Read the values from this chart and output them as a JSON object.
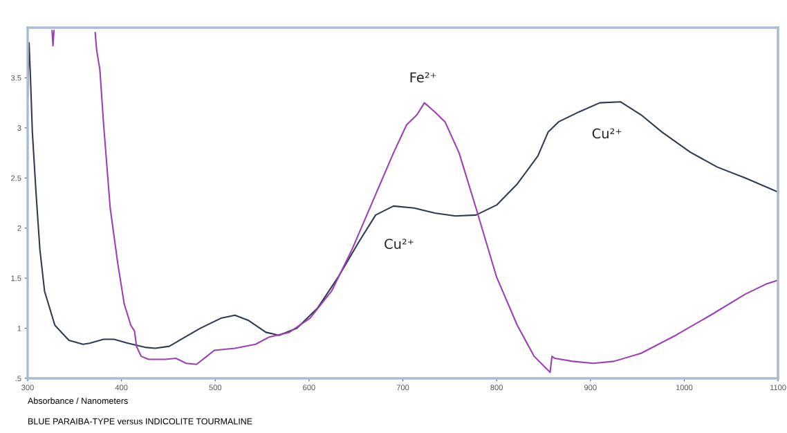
{
  "chart_data": {
    "type": "line",
    "title": "BLUE PARAIBA-TYPE versus INDICOLITE TOURMALINE",
    "xlabel": "Absorbance / Nanometers",
    "xlim": [
      300,
      1100
    ],
    "ylim": [
      0.5,
      4.0
    ],
    "xticks": [
      300,
      400,
      500,
      600,
      700,
      800,
      900,
      1000,
      1100
    ],
    "yticks": [
      {
        "value": 0.5,
        "label": ".5"
      },
      1,
      1.5,
      2,
      2.5,
      3,
      3.5
    ],
    "grid": false,
    "legend": false,
    "marker": "none",
    "line_style": "solid",
    "series": [
      {
        "color": "#2e3a4f",
        "x": [
          300,
          301.5,
          303,
          305,
          309,
          313,
          318,
          329,
          344,
          359,
          366,
          381,
          392,
          407,
          425,
          436,
          451,
          462,
          484,
          506,
          521,
          535,
          554,
          568,
          587,
          609,
          631,
          653,
          671,
          690,
          712,
          734,
          756,
          778,
          800,
          822,
          844,
          855,
          866,
          888,
          910,
          932,
          954,
          976,
          1006,
          1035,
          1065,
          1100
        ],
        "values": [
          3.3,
          3.85,
          3.5,
          2.96,
          2.34,
          1.79,
          1.37,
          1.03,
          0.88,
          0.84,
          0.85,
          0.89,
          0.89,
          0.85,
          0.81,
          0.8,
          0.82,
          0.88,
          1.0,
          1.1,
          1.13,
          1.08,
          0.96,
          0.93,
          1.0,
          1.2,
          1.51,
          1.86,
          2.13,
          2.22,
          2.2,
          2.15,
          2.12,
          2.13,
          2.23,
          2.44,
          2.72,
          2.96,
          3.06,
          3.16,
          3.25,
          3.26,
          3.13,
          2.96,
          2.76,
          2.61,
          2.5,
          2.36
        ]
      },
      {
        "color": "#9b3fb5",
        "x": [
          326,
          327,
          328,
          329,
          370,
          372,
          373.5,
          377,
          381,
          388,
          396,
          403,
          410,
          414,
          416,
          421,
          429,
          447,
          458,
          469,
          480,
          491,
          499,
          521,
          543,
          557,
          579,
          601,
          624,
          646,
          668,
          690,
          704,
          715,
          723,
          734,
          745,
          760,
          778,
          800,
          822,
          840,
          855,
          857,
          859,
          862,
          881,
          903,
          925,
          954,
          991,
          1028,
          1065,
          1087,
          1100
        ],
        "values": [
          3.97,
          3.82,
          3.97,
          null,
          null,
          3.95,
          3.78,
          3.58,
          3.03,
          2.2,
          1.65,
          1.24,
          1.03,
          0.97,
          0.82,
          0.72,
          0.69,
          0.69,
          0.7,
          0.65,
          0.64,
          0.72,
          0.78,
          0.8,
          0.84,
          0.91,
          0.96,
          1.1,
          1.37,
          1.79,
          2.27,
          2.75,
          3.03,
          3.13,
          3.25,
          3.16,
          3.06,
          2.75,
          2.2,
          1.51,
          1.03,
          0.72,
          0.58,
          0.56,
          0.72,
          0.7,
          0.67,
          0.65,
          0.67,
          0.75,
          0.93,
          1.13,
          1.34,
          1.44,
          1.48
        ]
      }
    ],
    "annotations": [
      "Fe²⁺",
      "Cu²⁺",
      "Cu²⁺"
    ]
  }
}
